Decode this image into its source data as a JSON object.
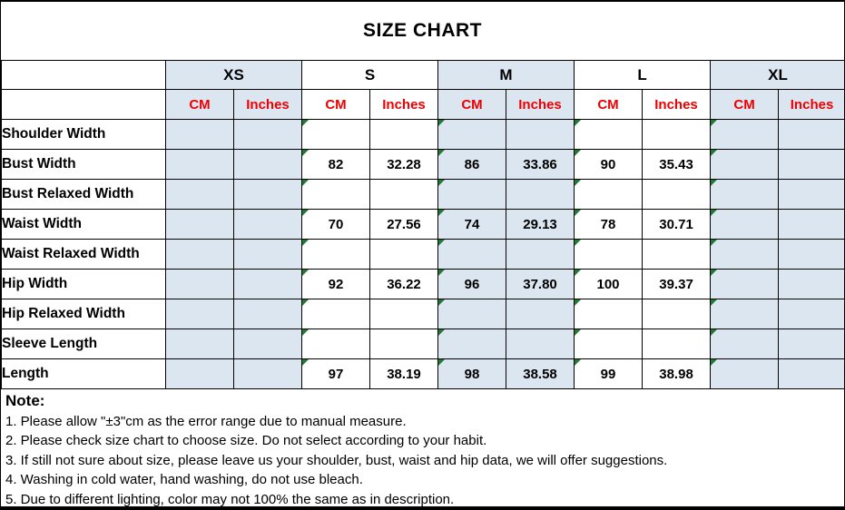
{
  "title": "SIZE CHART",
  "colors": {
    "shaded_cell": "#dce6f1",
    "header_red": "#ee0000",
    "triangle_green": "#1f7a36",
    "grid_line": "#000000"
  },
  "table": {
    "size_groups": [
      {
        "label": "XS",
        "shaded": true
      },
      {
        "label": "S",
        "shaded": false
      },
      {
        "label": "M",
        "shaded": true
      },
      {
        "label": "L",
        "shaded": false
      },
      {
        "label": "XL",
        "shaded": true
      }
    ],
    "unit_headers": [
      "CM",
      "Inches"
    ],
    "columns_per_group": [
      "CM",
      "Inches"
    ],
    "rows": [
      {
        "label": "Shoulder Width",
        "values": [
          "",
          "",
          "",
          "",
          "",
          "",
          "",
          "",
          "",
          ""
        ]
      },
      {
        "label": "Bust Width",
        "values": [
          "",
          "",
          "82",
          "32.28",
          "86",
          "33.86",
          "90",
          "35.43",
          "",
          ""
        ]
      },
      {
        "label": "Bust Relaxed Width",
        "values": [
          "",
          "",
          "",
          "",
          "",
          "",
          "",
          "",
          "",
          ""
        ]
      },
      {
        "label": "Waist Width",
        "values": [
          "",
          "",
          "70",
          "27.56",
          "74",
          "29.13",
          "78",
          "30.71",
          "",
          ""
        ]
      },
      {
        "label": "Waist Relaxed Width",
        "values": [
          "",
          "",
          "",
          "",
          "",
          "",
          "",
          "",
          "",
          ""
        ]
      },
      {
        "label": "Hip Width",
        "values": [
          "",
          "",
          "92",
          "36.22",
          "96",
          "37.80",
          "100",
          "39.37",
          "",
          ""
        ]
      },
      {
        "label": "Hip Relaxed Width",
        "values": [
          "",
          "",
          "",
          "",
          "",
          "",
          "",
          "",
          "",
          ""
        ]
      },
      {
        "label": "Sleeve Length",
        "values": [
          "",
          "",
          "",
          "",
          "",
          "",
          "",
          "",
          "",
          ""
        ]
      },
      {
        "label": "Length",
        "values": [
          "",
          "",
          "97",
          "38.19",
          "98",
          "38.58",
          "99",
          "38.98",
          "",
          ""
        ]
      }
    ]
  },
  "note": {
    "heading": "Note:",
    "lines": [
      "1. Please allow \"±3\"cm as the error range due to manual measure.",
      "2. Please check size chart to choose size. Do not select according to your habit.",
      "3. If still not sure about size, please leave us your shoulder, bust, waist and hip data, we will offer suggestions.",
      "4. Washing in cold water, hand washing, do not use bleach.",
      "5. Due to different lighting, color may not 100% the same as in description."
    ]
  }
}
